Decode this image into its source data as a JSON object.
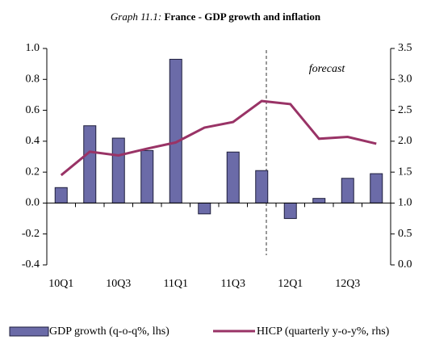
{
  "chart_data": {
    "type": "bar_line",
    "title_label": "Graph 11.1:",
    "title": "France - GDP growth and inflation",
    "annotation": "forecast",
    "categories": [
      "10Q1",
      null,
      "10Q3",
      null,
      "11Q1",
      null,
      "11Q3",
      null,
      "12Q1",
      null,
      "12Q3",
      null
    ],
    "series": [
      {
        "name": "GDP growth (q-o-q%, lhs)",
        "type": "bar",
        "color": "#6b6ba8",
        "axis": "y",
        "values": [
          0.1,
          0.5,
          0.42,
          0.34,
          0.93,
          -0.07,
          0.33,
          0.21,
          -0.1,
          0.03,
          0.16,
          0.19
        ]
      },
      {
        "name": "HICP (quarterly y-o-y%, rhs)",
        "type": "line",
        "color": "#993366",
        "axis": "y2",
        "values": [
          1.45,
          1.83,
          1.77,
          1.88,
          1.98,
          2.22,
          2.31,
          2.65,
          2.6,
          2.04,
          2.07,
          1.96
        ]
      }
    ],
    "ylim": [
      -0.4,
      1.0
    ],
    "yticks": [
      -0.4,
      -0.2,
      {
        "value": 0,
        "label": "0.0"
      },
      0.2,
      0.4,
      0.6,
      0.8,
      {
        "value": 1,
        "label": "1.0"
      }
    ],
    "y2lim": [
      0,
      3.5
    ],
    "y2ticks": [
      {
        "value": 0,
        "label": "0.0"
      },
      0.5,
      {
        "value": 1,
        "label": "1.0"
      },
      1.5,
      {
        "value": 2,
        "label": "2.0"
      },
      2.5,
      {
        "value": 3,
        "label": "3.0"
      },
      3.5
    ]
  }
}
